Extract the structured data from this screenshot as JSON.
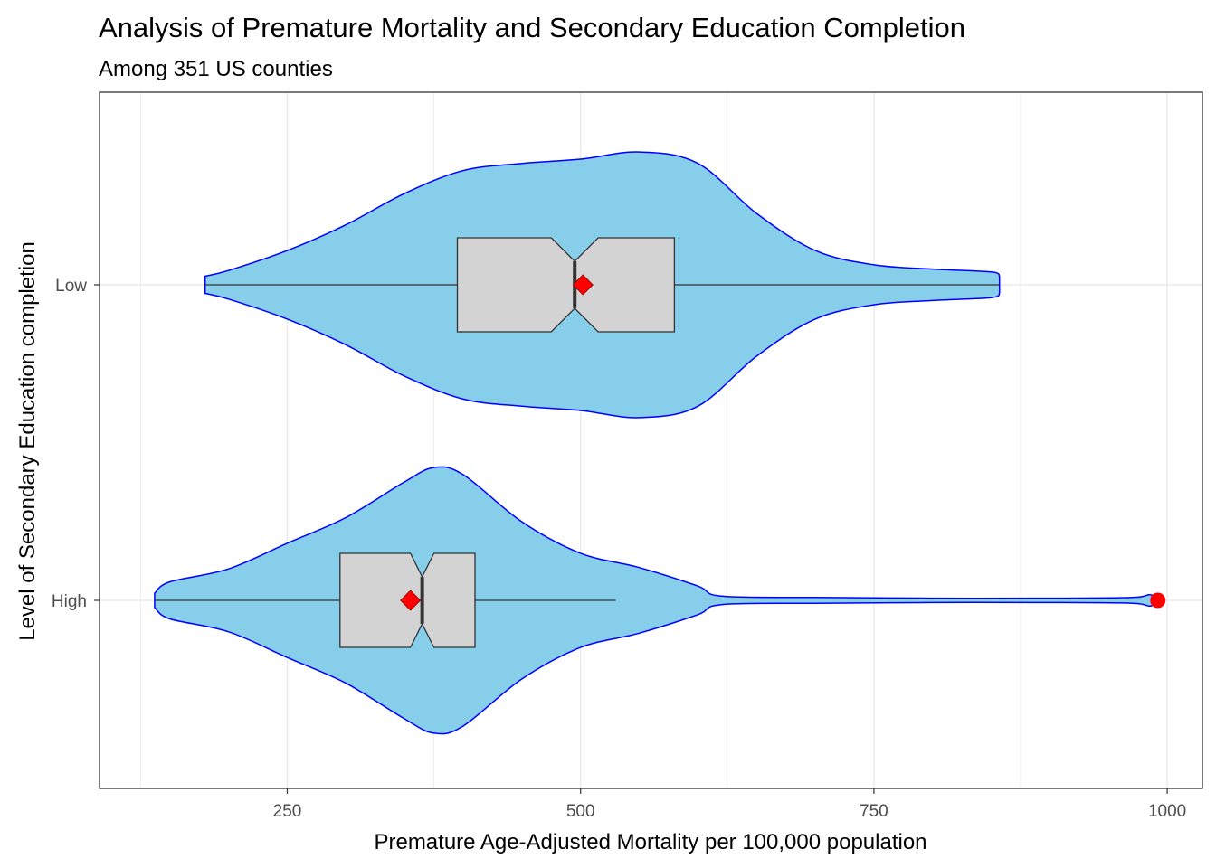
{
  "chart_data": {
    "type": "violin",
    "title": "Analysis of Premature Mortality and Secondary Education Completion",
    "subtitle": "Among 351 US counties",
    "xlabel": "Premature Age-Adjusted Mortality per 100,000 population",
    "ylabel": "Level of Secondary Education completion",
    "xlim": [
      90,
      1030
    ],
    "x_ticks": [
      250,
      500,
      750,
      1000
    ],
    "x_tick_labels": [
      "250",
      "500",
      "750",
      "1000"
    ],
    "categories": [
      "Low",
      "High"
    ],
    "grid": true,
    "colors": {
      "violin_fill": "#87CEEB",
      "violin_outline": "#0000FF",
      "box_fill": "#D3D3D3",
      "box_outline": "#333333",
      "mean_marker": "#FF0000",
      "outlier": "#FF0000",
      "grid": "#EBEBEB"
    },
    "groups": [
      {
        "name": "Low",
        "violin_min": 180,
        "violin_max": 857,
        "density": [
          [
            180,
            0.06
          ],
          [
            200,
            0.1
          ],
          [
            250,
            0.24
          ],
          [
            300,
            0.42
          ],
          [
            350,
            0.64
          ],
          [
            400,
            0.8
          ],
          [
            450,
            0.85
          ],
          [
            500,
            0.88
          ],
          [
            550,
            0.93
          ],
          [
            600,
            0.85
          ],
          [
            650,
            0.5
          ],
          [
            700,
            0.24
          ],
          [
            750,
            0.14
          ],
          [
            800,
            0.11
          ],
          [
            850,
            0.09
          ],
          [
            857,
            0.06
          ]
        ],
        "whisker_low": 180,
        "q1": 395,
        "median": 495,
        "q3": 580,
        "whisker_high": 857,
        "notch_low": 475,
        "notch_high": 515,
        "mean": 502,
        "outliers": []
      },
      {
        "name": "High",
        "violin_min": 137,
        "violin_max": 992,
        "density": [
          [
            137,
            0.05
          ],
          [
            150,
            0.13
          ],
          [
            200,
            0.22
          ],
          [
            250,
            0.4
          ],
          [
            300,
            0.58
          ],
          [
            350,
            0.83
          ],
          [
            375,
            0.93
          ],
          [
            400,
            0.88
          ],
          [
            450,
            0.55
          ],
          [
            500,
            0.33
          ],
          [
            550,
            0.23
          ],
          [
            600,
            0.1
          ],
          [
            620,
            0.03
          ],
          [
            700,
            0.02
          ],
          [
            800,
            0.015
          ],
          [
            900,
            0.015
          ],
          [
            970,
            0.02
          ],
          [
            985,
            0.04
          ],
          [
            992,
            0.015
          ]
        ],
        "whisker_low": 137,
        "q1": 295,
        "median": 365,
        "q3": 410,
        "whisker_high": 530,
        "notch_low": 355,
        "notch_high": 375,
        "mean": 355,
        "outliers": [
          992
        ]
      }
    ]
  }
}
